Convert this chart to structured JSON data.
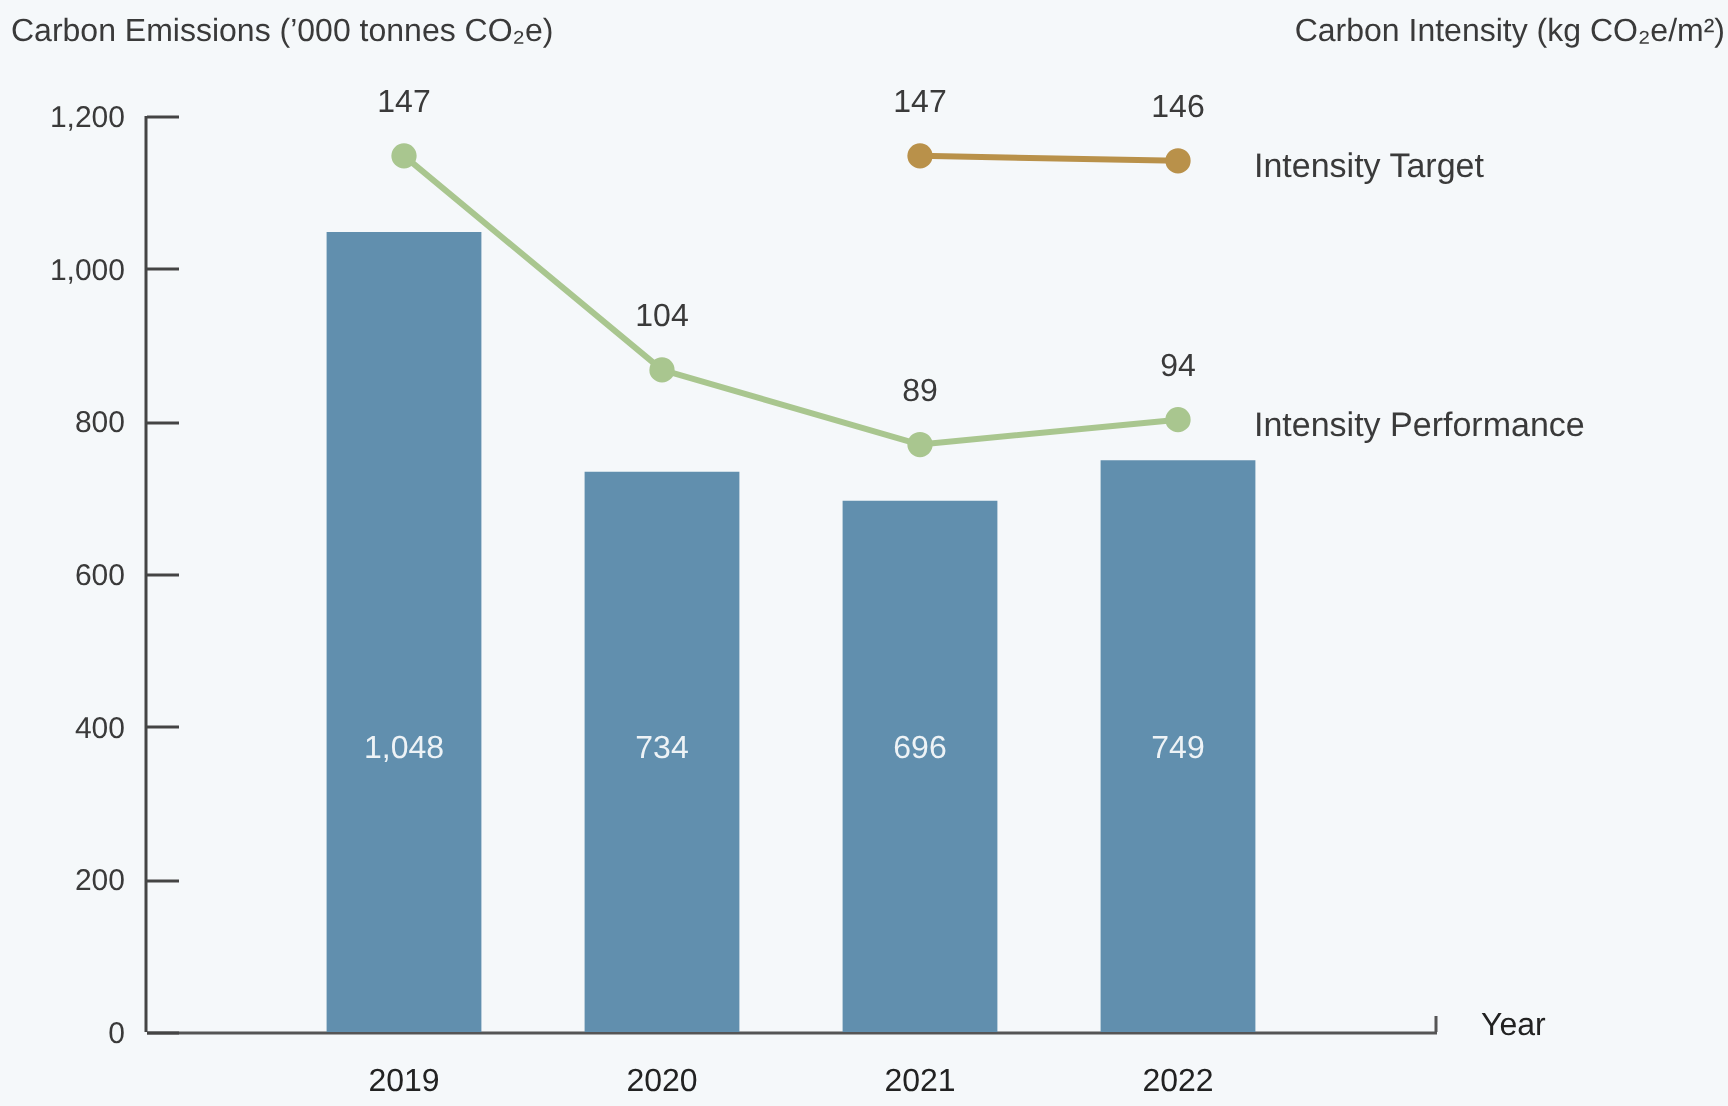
{
  "chart_data": {
    "type": "bar",
    "xlabel": "Year",
    "ylabel": "Carbon Emissions (’000 tonnes CO₂e)",
    "y2label": "Carbon Intensity (kg CO₂e/m²)",
    "categories": [
      "2019",
      "2020",
      "2021",
      "2022"
    ],
    "series": [
      {
        "color": "#618fae",
        "values": [
          1048,
          734,
          696,
          749
        ],
        "value_labels": [
          "1,048",
          "734",
          "696",
          "749"
        ]
      },
      {
        "type": "line",
        "axis": "y2",
        "name": "Intensity Performance",
        "color": "#a9c68f",
        "values": [
          147,
          104,
          89,
          94
        ],
        "value_labels": [
          "147",
          "104",
          "89",
          "94"
        ]
      },
      {
        "type": "line",
        "axis": "y2",
        "name": "Intensity Target",
        "color": "#b9914a",
        "values": [
          null,
          null,
          147,
          146
        ],
        "value_labels": [
          null,
          null,
          "147",
          "146"
        ]
      }
    ],
    "ylim": [
      0,
      1200
    ],
    "yticks": [
      0,
      200,
      400,
      600,
      800,
      {
        "value": 1000,
        "label": "1,000"
      },
      {
        "value": 1200,
        "label": "1,200"
      }
    ],
    "y2lim": [
      -29,
      155
    ],
    "marker": "circle",
    "line_style": "solid"
  }
}
